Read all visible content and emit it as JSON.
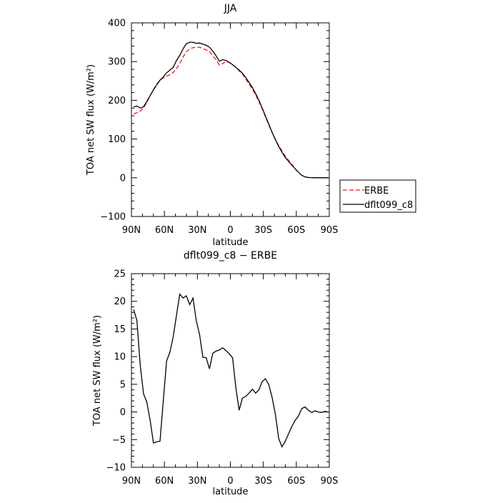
{
  "chart_data": [
    {
      "type": "line",
      "title": "JJA",
      "xlabel": "latitude",
      "ylabel": "TOA net SW flux (W/m²)",
      "xlim": [
        90,
        -90
      ],
      "ylim": [
        -100,
        400
      ],
      "xticks": [
        {
          "value": 90,
          "label": "90N"
        },
        {
          "value": 60,
          "label": "60N"
        },
        {
          "value": 30,
          "label": "30N"
        },
        {
          "value": 0,
          "label": "0"
        },
        {
          "value": -30,
          "label": "30S"
        },
        {
          "value": -60,
          "label": "60S"
        },
        {
          "value": -90,
          "label": "90S"
        }
      ],
      "yticks": [
        {
          "value": 400,
          "label": "400"
        },
        {
          "value": 300,
          "label": "300"
        },
        {
          "value": 200,
          "label": "200"
        },
        {
          "value": 100,
          "label": "100"
        },
        {
          "value": 0,
          "label": "0"
        },
        {
          "value": -100,
          "label": "−100"
        }
      ],
      "legend_position": "bottom-right outside",
      "series": [
        {
          "name": "ERBE",
          "color": "#e41a1c",
          "dash": "dashed",
          "x": [
            88,
            85,
            82,
            79,
            76,
            73,
            70,
            67,
            64,
            61,
            58,
            55,
            52,
            49,
            46,
            43,
            40,
            37,
            34,
            31,
            28,
            25,
            22,
            19,
            16,
            13,
            10,
            7,
            4,
            1,
            -2,
            -5,
            -8,
            -11,
            -14,
            -17,
            -20,
            -23,
            -26,
            -29,
            -32,
            -35,
            -38,
            -41,
            -44,
            -47,
            -50,
            -53,
            -56,
            -59,
            -62,
            -65,
            -68,
            -71,
            -74,
            -77,
            -80,
            -83,
            -86,
            -89
          ],
          "values": [
            165,
            168,
            172,
            180,
            195,
            212,
            228,
            242,
            252,
            258,
            262,
            266,
            272,
            282,
            295,
            312,
            325,
            333,
            336,
            337,
            337,
            334,
            330,
            326,
            315,
            305,
            291,
            295,
            300,
            298,
            292,
            285,
            276,
            268,
            255,
            242,
            229,
            214,
            197,
            178,
            157,
            136,
            117,
            99,
            83,
            69,
            56,
            45,
            34,
            23,
            14,
            6,
            2,
            0.8,
            0.3,
            0.1,
            0.05,
            0,
            0,
            0
          ]
        },
        {
          "name": "dflt099_c8",
          "color": "#000000",
          "dash": "solid",
          "x": [
            88,
            85,
            82,
            79,
            76,
            73,
            70,
            67,
            64,
            61,
            58,
            55,
            52,
            49,
            46,
            43,
            40,
            37,
            34,
            31,
            28,
            25,
            22,
            19,
            16,
            13,
            10,
            7,
            4,
            1,
            -2,
            -5,
            -8,
            -11,
            -14,
            -17,
            -20,
            -23,
            -26,
            -29,
            -32,
            -35,
            -38,
            -41,
            -44,
            -47,
            -50,
            -53,
            -56,
            -59,
            -62,
            -65,
            -68,
            -71,
            -74,
            -77,
            -80,
            -83,
            -86,
            -89
          ],
          "values": [
            183,
            185,
            180,
            183,
            197,
            212,
            227,
            240,
            252,
            260,
            271,
            278,
            285,
            303,
            316,
            333,
            346,
            350,
            350,
            347,
            348,
            345,
            342,
            337,
            327,
            315,
            301,
            305,
            303,
            298,
            292,
            285,
            278,
            270,
            259,
            246,
            233,
            217,
            200,
            180,
            159,
            138,
            117,
            98,
            81,
            66,
            52,
            42,
            32,
            23,
            14,
            6.5,
            2.3,
            0.8,
            0.3,
            0.1,
            0,
            0,
            0,
            0
          ]
        }
      ]
    },
    {
      "type": "line",
      "title": "dflt099_c8 − ERBE",
      "xlabel": "latitude",
      "ylabel": "TOA net SW flux (W/m²)",
      "xlim": [
        90,
        -90
      ],
      "ylim": [
        -10,
        25
      ],
      "xticks": [
        {
          "value": 90,
          "label": "90N"
        },
        {
          "value": 60,
          "label": "60N"
        },
        {
          "value": 30,
          "label": "30N"
        },
        {
          "value": 0,
          "label": "0"
        },
        {
          "value": -30,
          "label": "30S"
        },
        {
          "value": -60,
          "label": "60S"
        },
        {
          "value": -90,
          "label": "90S"
        }
      ],
      "yticks": [
        {
          "value": 25,
          "label": "25"
        },
        {
          "value": 20,
          "label": "20"
        },
        {
          "value": 15,
          "label": "15"
        },
        {
          "value": 10,
          "label": "10"
        },
        {
          "value": 5,
          "label": "5"
        },
        {
          "value": 0,
          "label": "0"
        },
        {
          "value": -5,
          "label": "−5"
        },
        {
          "value": -10,
          "label": "−10"
        }
      ],
      "series": [
        {
          "color": "#000000",
          "dash": "solid",
          "x": [
            88,
            85,
            82,
            79,
            76,
            73,
            70,
            67,
            64,
            61,
            58,
            55,
            52,
            49,
            46,
            43,
            40,
            37,
            34,
            31,
            28,
            25,
            22,
            19,
            16,
            13,
            10,
            7,
            4,
            1,
            -2,
            -5,
            -8,
            -11,
            -14,
            -17,
            -20,
            -23,
            -26,
            -29,
            -32,
            -35,
            -38,
            -41,
            -44,
            -47,
            -50,
            -53,
            -56,
            -59,
            -62,
            -65,
            -68,
            -71,
            -74,
            -77,
            -80,
            -83,
            -86,
            -89
          ],
          "values": [
            18.5,
            16.5,
            8.5,
            3.3,
            1.8,
            -1.5,
            -5.6,
            -5.4,
            -5.3,
            2.0,
            9.2,
            10.8,
            13.6,
            17.5,
            21.3,
            20.6,
            21.0,
            19.4,
            20.6,
            16.5,
            14.0,
            9.9,
            9.8,
            7.8,
            10.6,
            11.0,
            11.2,
            11.6,
            11.1,
            10.5,
            9.8,
            4.4,
            0.3,
            2.5,
            2.8,
            3.4,
            4.1,
            3.4,
            4.0,
            5.5,
            6.0,
            4.9,
            2.6,
            -0.5,
            -4.8,
            -6.3,
            -5.3,
            -3.9,
            -2.6,
            -1.5,
            -0.7,
            0.6,
            0.9,
            0.3,
            -0.1,
            0.2,
            0.0,
            -0.1,
            0.1,
            0.0
          ]
        }
      ]
    }
  ]
}
